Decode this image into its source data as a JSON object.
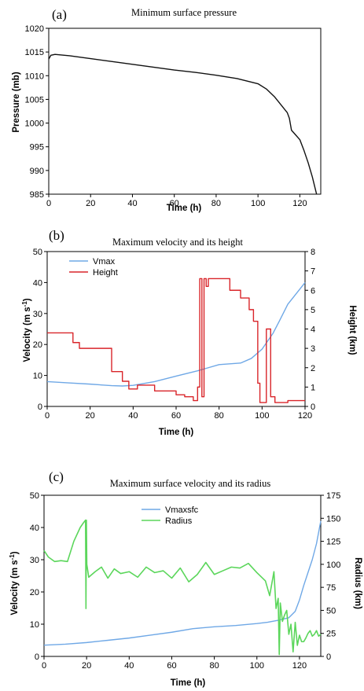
{
  "colors": {
    "blue": "#6fa8e6",
    "red": "#d9252a",
    "green": "#5bd65b",
    "black": "#111111"
  },
  "chart_data": [
    {
      "type": "line",
      "panel_label": "(a)",
      "title": "Minimum surface pressure",
      "xlabel": "Time (h)",
      "ylabel": "Pressure (mb)",
      "xlim": [
        0,
        130
      ],
      "ylim": [
        985,
        1020
      ],
      "xticks": [
        0,
        20,
        40,
        60,
        80,
        100,
        120
      ],
      "yticks": [
        985,
        990,
        995,
        1000,
        1005,
        1010,
        1015,
        1020
      ],
      "grid": false,
      "series": [
        {
          "color": "#111111",
          "x": [
            0,
            1,
            3,
            10,
            20,
            30,
            40,
            50,
            60,
            70,
            80,
            90,
            100,
            104,
            108,
            112,
            114,
            115,
            116,
            117,
            118,
            120,
            122,
            124,
            126,
            127,
            128
          ],
          "y": [
            1013.5,
            1014.3,
            1014.5,
            1014.2,
            1013.6,
            1013.0,
            1012.4,
            1011.8,
            1011.2,
            1010.7,
            1010.1,
            1009.4,
            1008.3,
            1007.2,
            1005.5,
            1003.3,
            1002.2,
            1001.0,
            998.5,
            998.0,
            997.5,
            996.5,
            994.2,
            991.6,
            988.6,
            986.8,
            985.0
          ]
        }
      ]
    },
    {
      "type": "line",
      "panel_label": "(b)",
      "title": "Maximum velocity and its height",
      "xlabel": "Time (h)",
      "ylabel": "Velocity (m s-1)",
      "y2label": "Height (km)",
      "xlim": [
        0,
        120
      ],
      "ylim": [
        0,
        50
      ],
      "y2lim": [
        0,
        8
      ],
      "xticks": [
        0,
        20,
        40,
        60,
        80,
        100,
        120
      ],
      "yticks": [
        0,
        10,
        20,
        30,
        40,
        50
      ],
      "y2ticks": [
        0,
        1,
        2,
        3,
        4,
        5,
        6,
        7,
        8
      ],
      "legend": "top-left",
      "series": [
        {
          "name": "Vmax",
          "axis": "left",
          "color": "#6fa8e6",
          "x": [
            0,
            10,
            20,
            30,
            35,
            40,
            50,
            60,
            70,
            75,
            80,
            90,
            95,
            100,
            105,
            108,
            112,
            116,
            120
          ],
          "y": [
            8.0,
            7.6,
            7.2,
            6.7,
            6.6,
            6.8,
            8.0,
            9.8,
            11.5,
            12.5,
            13.5,
            14.0,
            15.5,
            18.5,
            23.5,
            27.5,
            33.0,
            36.5,
            40.0
          ]
        },
        {
          "name": "Height",
          "axis": "right",
          "color": "#d9252a",
          "x": [
            0,
            12,
            12,
            15,
            15,
            20,
            20,
            30,
            30,
            35,
            35,
            38,
            38,
            42,
            42,
            50,
            50,
            60,
            60,
            64,
            64,
            68,
            68,
            70,
            70,
            71,
            71,
            72,
            72,
            73,
            73,
            74,
            74,
            75,
            75,
            85,
            85,
            90,
            90,
            94,
            94,
            96,
            96,
            98,
            98,
            99,
            99,
            102,
            102,
            104,
            104,
            106,
            106,
            112,
            112,
            120
          ],
          "y": [
            3.8,
            3.8,
            3.3,
            3.3,
            3.0,
            3.0,
            3.0,
            3.0,
            1.8,
            1.8,
            1.3,
            1.3,
            0.9,
            0.9,
            1.1,
            1.1,
            0.8,
            0.8,
            0.6,
            0.6,
            0.5,
            0.5,
            0.3,
            0.3,
            1.0,
            1.0,
            6.6,
            6.6,
            0.5,
            0.5,
            6.6,
            6.6,
            6.2,
            6.2,
            6.6,
            6.6,
            6.0,
            6.0,
            5.6,
            5.6,
            5.0,
            5.0,
            4.4,
            4.4,
            1.2,
            1.2,
            0.2,
            0.2,
            4.0,
            4.0,
            0.5,
            0.5,
            0.2,
            0.2,
            0.3,
            0.3
          ]
        }
      ]
    },
    {
      "type": "line",
      "panel_label": "(c)",
      "title": "Maximum surface velocity and its radius",
      "xlabel": "Time (h)",
      "ylabel": "Velocity (m s-1)",
      "y2label": "Radius (km)",
      "xlim": [
        0,
        130
      ],
      "ylim": [
        0,
        50
      ],
      "y2lim": [
        0,
        175
      ],
      "xticks": [
        0,
        20,
        40,
        60,
        80,
        100,
        120
      ],
      "yticks": [
        0,
        10,
        20,
        30,
        40,
        50
      ],
      "y2ticks": [
        0,
        25,
        50,
        75,
        100,
        125,
        150,
        175
      ],
      "legend": "top-center",
      "series": [
        {
          "name": "Vmaxsfc",
          "axis": "left",
          "color": "#6fa8e6",
          "x": [
            0,
            10,
            20,
            30,
            40,
            50,
            60,
            70,
            80,
            90,
            100,
            105,
            110,
            115,
            118,
            120,
            122,
            124,
            126,
            128,
            130
          ],
          "y": [
            3.5,
            3.8,
            4.3,
            5.0,
            5.7,
            6.6,
            7.5,
            8.6,
            9.2,
            9.6,
            10.2,
            10.6,
            11.2,
            12.0,
            14.0,
            17.5,
            22.0,
            26.0,
            30.0,
            35.0,
            42.0
          ]
        },
        {
          "name": "Radius",
          "axis": "right",
          "color": "#5bd65b",
          "x": [
            0,
            2,
            5,
            8,
            11,
            14,
            17,
            18.5,
            19.5,
            19.7,
            19.9,
            20.1,
            21,
            24,
            27,
            30,
            33,
            36,
            40,
            44,
            48,
            52,
            56,
            60,
            64,
            68,
            72,
            76,
            80,
            84,
            88,
            92,
            96,
            100,
            104,
            106,
            108,
            109,
            110,
            110.5,
            111,
            112,
            113,
            114,
            115,
            116,
            117,
            118,
            119,
            120,
            121,
            122,
            123,
            124,
            125,
            126,
            127,
            128,
            129,
            130
          ],
          "y": [
            115,
            108,
            103,
            104,
            103,
            125,
            140,
            145,
            148,
            52,
            148,
            100,
            86,
            92,
            97,
            85,
            95,
            90,
            92,
            86,
            97,
            91,
            93,
            85,
            96,
            81,
            89,
            102,
            89,
            93,
            97,
            96,
            101,
            91,
            82,
            66,
            92,
            52,
            63,
            2,
            58,
            38,
            45,
            50,
            24,
            35,
            5,
            37,
            12,
            23,
            16,
            16,
            20,
            25,
            28,
            22,
            24,
            28,
            22,
            24
          ]
        }
      ]
    }
  ]
}
